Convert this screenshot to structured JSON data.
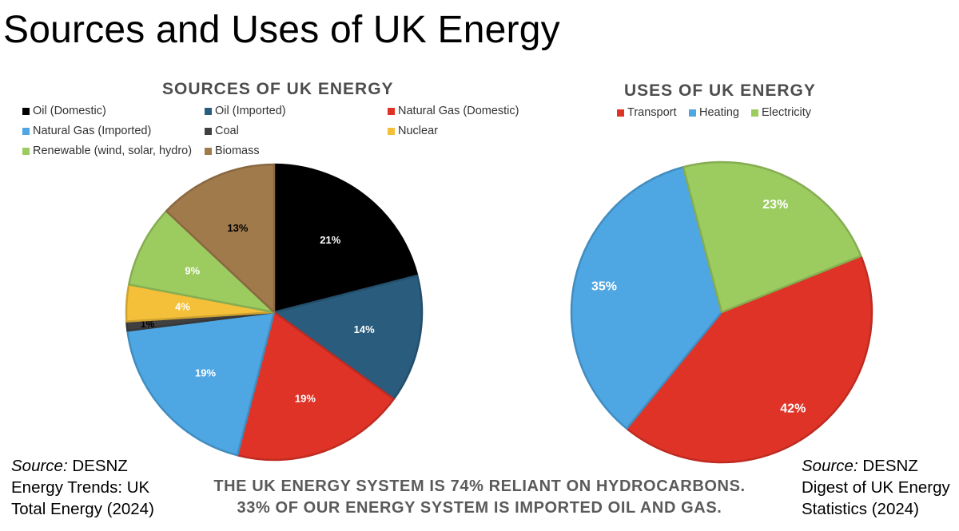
{
  "title": "Sources and Uses of UK Energy",
  "chart_data": [
    {
      "type": "pie",
      "title": "SOURCES OF UK ENERGY",
      "labels_unit": "%",
      "slices": [
        {
          "name": "Oil (Domestic)",
          "value": 21,
          "color": "#000000",
          "label_color": "#ffffff"
        },
        {
          "name": "Oil  (Imported)",
          "value": 14,
          "color": "#2a5c7d",
          "label_color": "#ffffff"
        },
        {
          "name": "Natural Gas (Domestic)",
          "value": 19,
          "color": "#e03327",
          "label_color": "#ffffff"
        },
        {
          "name": "Natural Gas (Imported)",
          "value": 19,
          "color": "#4ea6e2",
          "label_color": "#ffffff"
        },
        {
          "name": "Coal",
          "value": 1,
          "color": "#404040",
          "label_color": "#000000"
        },
        {
          "name": "Nuclear",
          "value": 4,
          "color": "#f4c03a",
          "label_color": "#ffffff"
        },
        {
          "name": "Renewable (wind, solar, hydro)",
          "value": 9,
          "color": "#9ccc5f",
          "label_color": "#ffffff"
        },
        {
          "name": "Biomass",
          "value": 13,
          "color": "#a17a4c",
          "label_color": "#000000"
        }
      ]
    },
    {
      "type": "pie",
      "title": "USES OF UK ENERGY",
      "labels_unit": "%",
      "slices": [
        {
          "name": "Transport",
          "value": 42,
          "color": "#e03327",
          "label_color": "#ffffff"
        },
        {
          "name": "Heating",
          "value": 35,
          "color": "#4ea6e2",
          "label_color": "#ffffff"
        },
        {
          "name": "Electricity",
          "value": 23,
          "color": "#9ccc5f",
          "label_color": "#ffffff"
        }
      ]
    }
  ],
  "sources": [
    {
      "label": "Source:",
      "lines": [
        " DESNZ",
        "Energy Trends: UK",
        "Total Energy (2024)"
      ]
    },
    {
      "label": "Source:",
      "lines": [
        " DESNZ",
        "Digest of UK Energy",
        "Statistics (2024)"
      ]
    }
  ],
  "footer": [
    "THE UK ENERGY SYSTEM IS 74% RELIANT ON HYDROCARBONS.",
    "33% OF OUR ENERGY SYSTEM IS IMPORTED OIL AND GAS."
  ]
}
